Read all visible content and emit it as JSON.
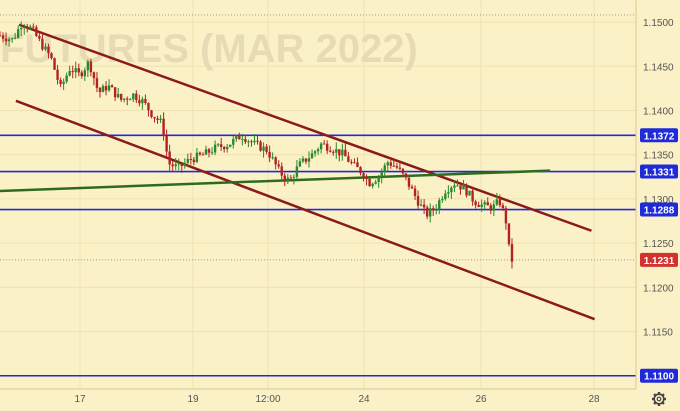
{
  "chart_data": {
    "type": "candlestick",
    "watermark": "FUTURES (MAR 2022)",
    "ylim": [
      1.1085,
      1.1525
    ],
    "y_ticks": [
      "1.1500",
      "1.1450",
      "1.1400",
      "1.1350",
      "1.1300",
      "1.1250",
      "1.1200",
      "1.1150"
    ],
    "x_ticks": [
      "17",
      "19",
      "12:00",
      "24",
      "26",
      "28"
    ],
    "horizontal_levels": [
      {
        "label": "1.1372",
        "value": 1.1372,
        "color": "#1f2bd8"
      },
      {
        "label": "1.1331",
        "value": 1.1331,
        "color": "#1f2bd8"
      },
      {
        "label": "1.1288",
        "value": 1.1288,
        "color": "#1f2bd8"
      },
      {
        "label": "1.1100",
        "value": 1.11,
        "color": "#1f2bd8"
      }
    ],
    "current_price": {
      "label": "1.1231",
      "value": 1.1231,
      "color": "#d3332f"
    },
    "trendlines": [
      {
        "color": "#8b1a1a",
        "from": [
          0.03,
          1.1497
        ],
        "to": [
          0.93,
          1.1264
        ]
      },
      {
        "color": "#8b1a1a",
        "from": [
          0.025,
          1.1411
        ],
        "to": [
          0.935,
          1.1164
        ]
      },
      {
        "color": "#2e6b1f",
        "from": [
          0.0,
          1.1309
        ],
        "to": [
          0.865,
          1.1332
        ]
      }
    ],
    "price_path": [
      [
        0.0,
        1.1485
      ],
      [
        0.02,
        1.148
      ],
      [
        0.035,
        1.15
      ],
      [
        0.05,
        1.1492
      ],
      [
        0.065,
        1.1475
      ],
      [
        0.08,
        1.146
      ],
      [
        0.095,
        1.1425
      ],
      [
        0.11,
        1.1448
      ],
      [
        0.125,
        1.144
      ],
      [
        0.14,
        1.1455
      ],
      [
        0.155,
        1.142
      ],
      [
        0.17,
        1.1428
      ],
      [
        0.19,
        1.1412
      ],
      [
        0.21,
        1.1418
      ],
      [
        0.225,
        1.141
      ],
      [
        0.24,
        1.1395
      ],
      [
        0.255,
        1.1385
      ],
      [
        0.265,
        1.134
      ],
      [
        0.28,
        1.1335
      ],
      [
        0.3,
        1.1345
      ],
      [
        0.32,
        1.135
      ],
      [
        0.34,
        1.1358
      ],
      [
        0.36,
        1.1362
      ],
      [
        0.38,
        1.1372
      ],
      [
        0.4,
        1.1362
      ],
      [
        0.42,
        1.1355
      ],
      [
        0.44,
        1.133
      ],
      [
        0.455,
        1.132
      ],
      [
        0.47,
        1.1338
      ],
      [
        0.49,
        1.135
      ],
      [
        0.505,
        1.1362
      ],
      [
        0.52,
        1.1358
      ],
      [
        0.54,
        1.135
      ],
      [
        0.555,
        1.1338
      ],
      [
        0.57,
        1.133
      ],
      [
        0.58,
        1.1318
      ],
      [
        0.595,
        1.1325
      ],
      [
        0.61,
        1.1342
      ],
      [
        0.625,
        1.1335
      ],
      [
        0.64,
        1.132
      ],
      [
        0.655,
        1.13
      ],
      [
        0.67,
        1.1282
      ],
      [
        0.685,
        1.129
      ],
      [
        0.7,
        1.131
      ],
      [
        0.715,
        1.1318
      ],
      [
        0.73,
        1.1312
      ],
      [
        0.745,
        1.1298
      ],
      [
        0.76,
        1.1292
      ],
      [
        0.775,
        1.129
      ],
      [
        0.785,
        1.1298
      ],
      [
        0.795,
        1.1278
      ],
      [
        0.8,
        1.1245
      ],
      [
        0.805,
        1.1231
      ]
    ]
  },
  "icons": {
    "settings": "gear-icon"
  }
}
